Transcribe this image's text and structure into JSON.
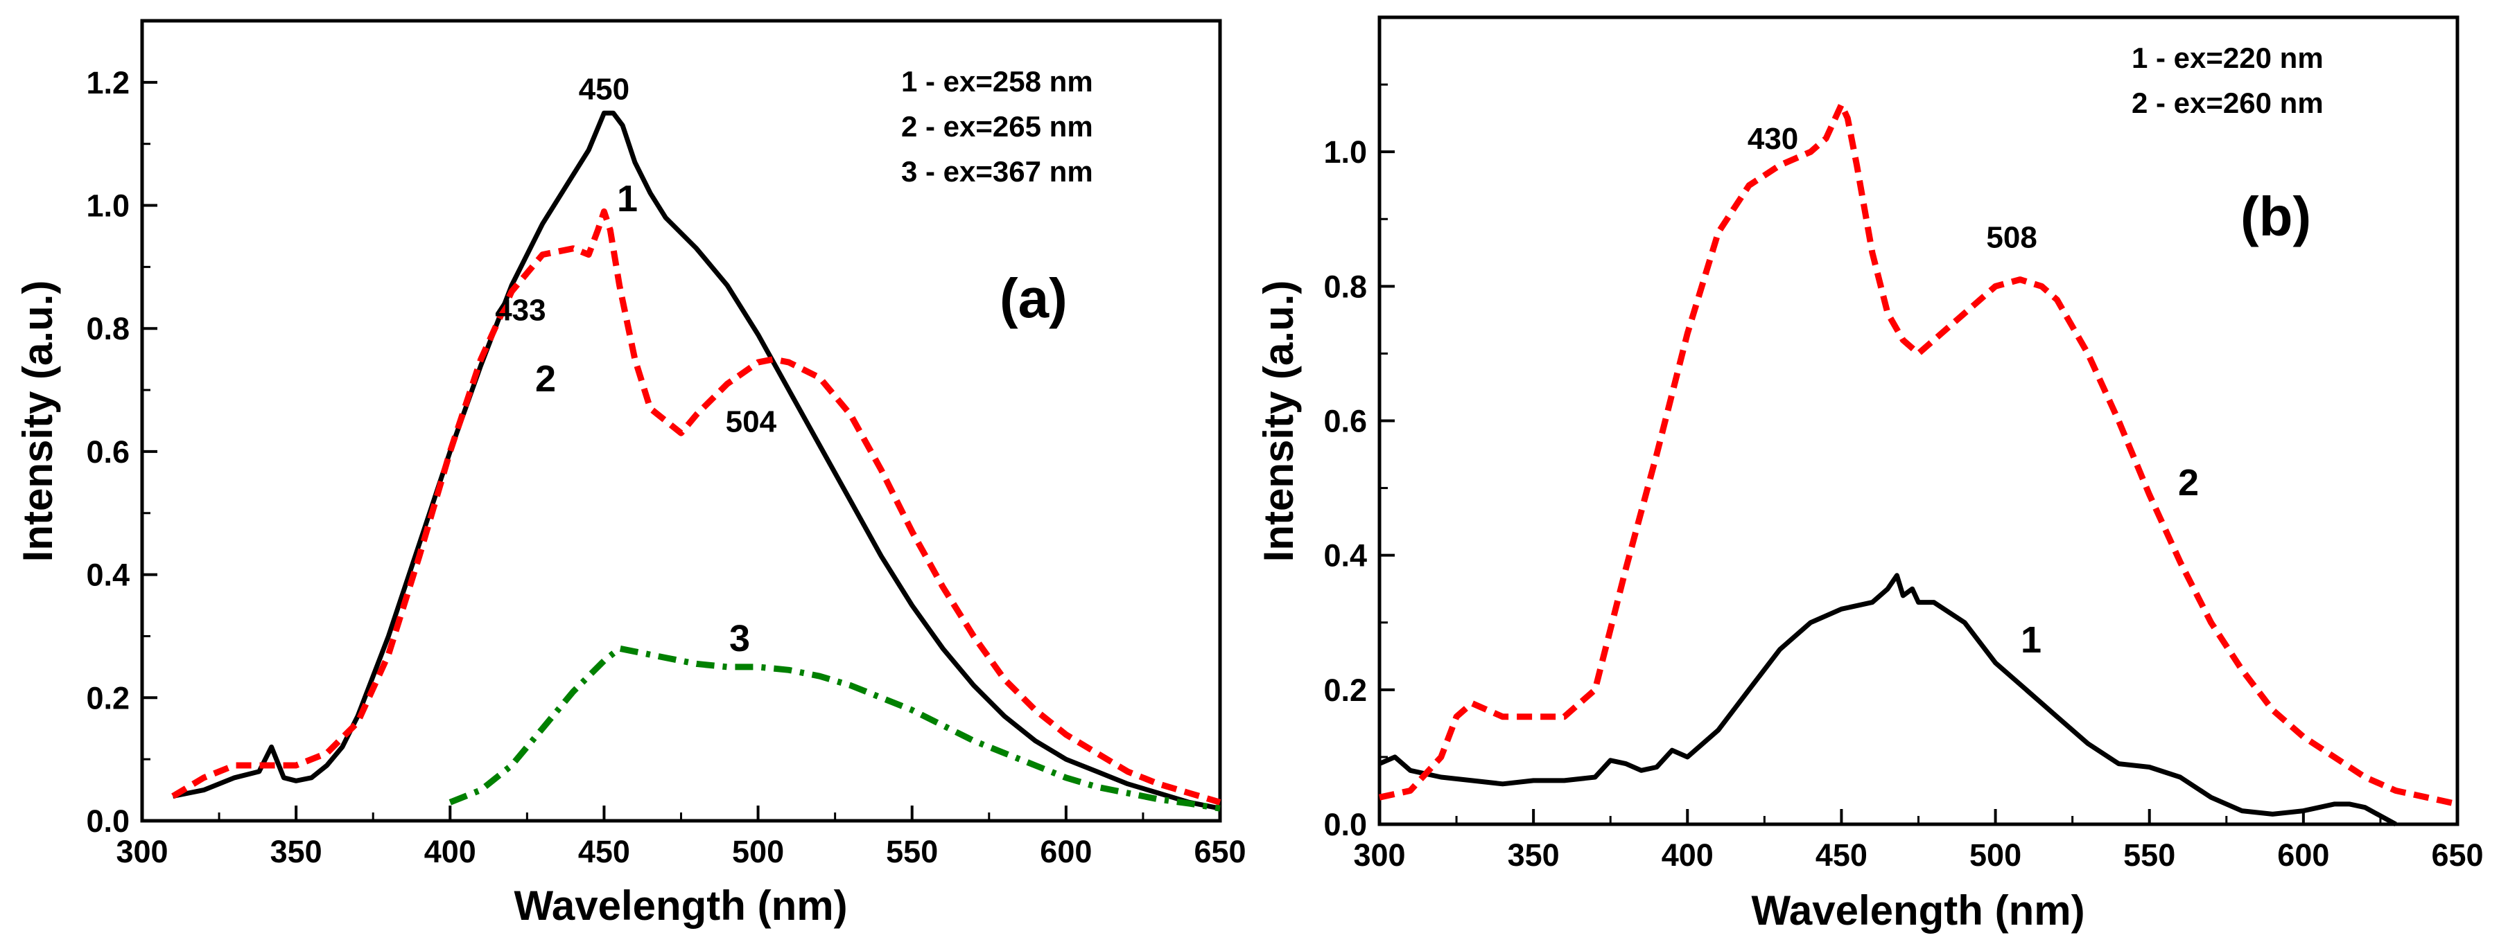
{
  "chart_data": [
    {
      "type": "line",
      "panel_label": "(a)",
      "xlabel": "Wavelength (nm)",
      "ylabel": "Intensity (a.u.)",
      "xlim": [
        300,
        650
      ],
      "ylim": [
        0,
        1.3
      ],
      "xticks": [
        "300",
        "350",
        "400",
        "450",
        "500",
        "550",
        "600",
        "650"
      ],
      "yticks": [
        "0.0",
        "0.2",
        "0.4",
        "0.6",
        "0.8",
        "1.0",
        "1.2"
      ],
      "legend": [
        "1 - ex=258 nm",
        "2 - ex=265 nm",
        "3 - ex=367 nm"
      ],
      "legend_position": "top-right",
      "series": [
        {
          "name": "1",
          "label": "1",
          "color": "#000000",
          "style": "solid",
          "x": [
            310,
            320,
            330,
            338,
            342,
            346,
            350,
            355,
            360,
            365,
            370,
            380,
            390,
            400,
            410,
            420,
            430,
            440,
            445,
            450,
            453,
            456,
            460,
            465,
            470,
            480,
            490,
            500,
            510,
            520,
            530,
            540,
            550,
            560,
            570,
            580,
            590,
            600,
            610,
            620,
            630,
            640,
            650
          ],
          "y": [
            0.04,
            0.05,
            0.07,
            0.08,
            0.12,
            0.07,
            0.065,
            0.07,
            0.09,
            0.12,
            0.17,
            0.3,
            0.45,
            0.6,
            0.74,
            0.87,
            0.97,
            1.05,
            1.09,
            1.15,
            1.15,
            1.13,
            1.07,
            1.02,
            0.98,
            0.93,
            0.87,
            0.79,
            0.7,
            0.61,
            0.52,
            0.43,
            0.35,
            0.28,
            0.22,
            0.17,
            0.13,
            0.1,
            0.08,
            0.06,
            0.045,
            0.03,
            0.02
          ],
          "annotations": [
            {
              "text": "450",
              "x": 450,
              "y": 1.15
            }
          ]
        },
        {
          "name": "2",
          "label": "2",
          "color": "#ff0000",
          "style": "dashed",
          "x": [
            310,
            320,
            330,
            340,
            350,
            360,
            370,
            380,
            390,
            400,
            410,
            420,
            430,
            440,
            445,
            448,
            450,
            452,
            455,
            460,
            465,
            470,
            475,
            480,
            490,
            500,
            505,
            510,
            520,
            530,
            540,
            550,
            560,
            570,
            580,
            590,
            600,
            610,
            620,
            630,
            640,
            650
          ],
          "y": [
            0.04,
            0.07,
            0.09,
            0.09,
            0.09,
            0.11,
            0.16,
            0.27,
            0.43,
            0.6,
            0.75,
            0.86,
            0.92,
            0.93,
            0.92,
            0.96,
            0.99,
            0.96,
            0.87,
            0.75,
            0.67,
            0.65,
            0.63,
            0.66,
            0.71,
            0.745,
            0.75,
            0.745,
            0.72,
            0.66,
            0.57,
            0.47,
            0.38,
            0.3,
            0.23,
            0.18,
            0.14,
            0.11,
            0.08,
            0.06,
            0.045,
            0.03
          ],
          "annotations": [
            {
              "text": "433",
              "x": 433,
              "y": 0.92
            },
            {
              "text": "504",
              "x": 504,
              "y": 0.75
            }
          ]
        },
        {
          "name": "3",
          "label": "3",
          "color": "#008000",
          "style": "dashdot",
          "x": [
            400,
            410,
            420,
            430,
            440,
            450,
            455,
            460,
            470,
            480,
            490,
            500,
            510,
            520,
            530,
            540,
            550,
            560,
            570,
            580,
            590,
            600,
            610,
            620,
            630,
            640,
            650
          ],
          "y": [
            0.03,
            0.05,
            0.09,
            0.15,
            0.21,
            0.26,
            0.28,
            0.275,
            0.265,
            0.255,
            0.25,
            0.25,
            0.245,
            0.235,
            0.22,
            0.2,
            0.18,
            0.155,
            0.13,
            0.11,
            0.09,
            0.07,
            0.055,
            0.045,
            0.035,
            0.028,
            0.02
          ],
          "annotations": []
        }
      ]
    },
    {
      "type": "line",
      "panel_label": "(b)",
      "xlabel": "Wavelength (nm)",
      "ylabel": "Intensity (a.u.)",
      "xlim": [
        300,
        650
      ],
      "ylim": [
        0,
        1.2
      ],
      "xticks": [
        "300",
        "350",
        "400",
        "450",
        "500",
        "550",
        "600",
        "650"
      ],
      "yticks": [
        "0.0",
        "0.2",
        "0.4",
        "0.6",
        "0.8",
        "1.0"
      ],
      "legend": [
        "1 - ex=220 nm",
        "2 - ex=260 nm"
      ],
      "legend_position": "top-right",
      "series": [
        {
          "name": "1",
          "label": "1",
          "color": "#000000",
          "style": "solid",
          "x": [
            300,
            305,
            310,
            320,
            330,
            340,
            350,
            360,
            370,
            375,
            380,
            385,
            390,
            395,
            400,
            405,
            410,
            420,
            430,
            440,
            450,
            460,
            465,
            468,
            470,
            473,
            475,
            480,
            490,
            500,
            510,
            520,
            530,
            540,
            550,
            560,
            570,
            580,
            590,
            600,
            610,
            615,
            620,
            630
          ],
          "y": [
            0.09,
            0.1,
            0.08,
            0.07,
            0.065,
            0.06,
            0.065,
            0.065,
            0.07,
            0.095,
            0.09,
            0.08,
            0.085,
            0.11,
            0.1,
            0.12,
            0.14,
            0.2,
            0.26,
            0.3,
            0.32,
            0.33,
            0.35,
            0.37,
            0.34,
            0.35,
            0.33,
            0.33,
            0.3,
            0.24,
            0.2,
            0.16,
            0.12,
            0.09,
            0.085,
            0.07,
            0.04,
            0.02,
            0.015,
            0.02,
            0.03,
            0.03,
            0.025,
            0.0
          ],
          "annotations": []
        },
        {
          "name": "2",
          "label": "2",
          "color": "#ff0000",
          "style": "dashed",
          "x": [
            300,
            310,
            320,
            325,
            330,
            340,
            350,
            360,
            370,
            380,
            390,
            400,
            410,
            420,
            430,
            440,
            445,
            450,
            452,
            455,
            460,
            465,
            470,
            475,
            480,
            490,
            500,
            508,
            515,
            520,
            530,
            540,
            550,
            560,
            570,
            580,
            590,
            600,
            610,
            620,
            630,
            640,
            650
          ],
          "y": [
            0.04,
            0.05,
            0.1,
            0.16,
            0.18,
            0.16,
            0.16,
            0.16,
            0.2,
            0.38,
            0.55,
            0.73,
            0.88,
            0.95,
            0.98,
            1.0,
            1.02,
            1.07,
            1.05,
            0.98,
            0.85,
            0.76,
            0.72,
            0.7,
            0.72,
            0.76,
            0.8,
            0.81,
            0.8,
            0.78,
            0.7,
            0.6,
            0.49,
            0.39,
            0.3,
            0.23,
            0.17,
            0.13,
            0.1,
            0.07,
            0.05,
            0.04,
            0.03
          ],
          "annotations": [
            {
              "text": "430",
              "x": 430,
              "y": 1.0
            },
            {
              "text": "508",
              "x": 508,
              "y": 0.81
            }
          ]
        }
      ]
    }
  ]
}
